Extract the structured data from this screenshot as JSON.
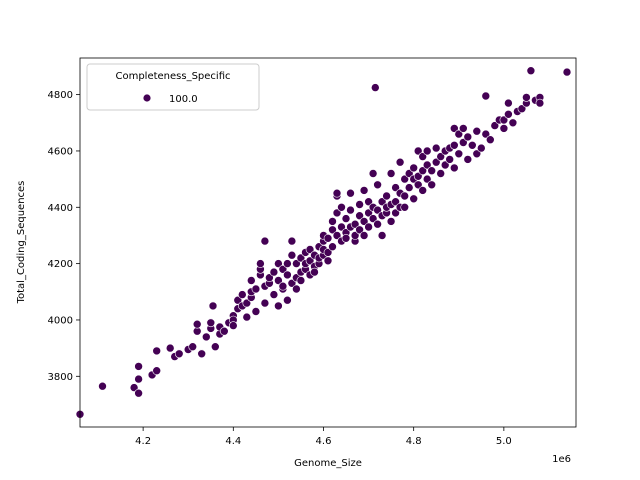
{
  "chart_data": {
    "type": "scatter",
    "title": "",
    "xlabel": "Genome_Size",
    "ylabel": "Total_Coding_Sequences",
    "x_offset_label": "1e6",
    "xlim": [
      4.06,
      5.16
    ],
    "ylim": [
      3620,
      4930
    ],
    "x_ticks": [
      4.2,
      4.4,
      4.6,
      4.8,
      5.0
    ],
    "x_tick_labels": [
      "4.2",
      "4.4",
      "4.6",
      "4.8",
      "5.0"
    ],
    "y_ticks": [
      3800,
      4000,
      4200,
      4400,
      4600,
      4800
    ],
    "y_tick_labels": [
      "3800",
      "4000",
      "4200",
      "4400",
      "4600",
      "4800"
    ],
    "grid": false,
    "legend": {
      "title": "Completeness_Specific",
      "placement": "top-left",
      "entries": [
        {
          "label": "100.0",
          "color": "#440154"
        }
      ]
    },
    "marker_color": "#440154",
    "marker_edge": "#ffffff",
    "series": [
      {
        "name": "100.0",
        "points": [
          [
            4.06,
            3665
          ],
          [
            4.11,
            3765
          ],
          [
            4.18,
            3760
          ],
          [
            4.19,
            3740
          ],
          [
            4.19,
            3790
          ],
          [
            4.19,
            3835
          ],
          [
            4.22,
            3805
          ],
          [
            4.23,
            3820
          ],
          [
            4.23,
            3890
          ],
          [
            4.26,
            3900
          ],
          [
            4.27,
            3870
          ],
          [
            4.28,
            3880
          ],
          [
            4.3,
            3895
          ],
          [
            4.31,
            3905
          ],
          [
            4.32,
            3960
          ],
          [
            4.32,
            3985
          ],
          [
            4.33,
            3880
          ],
          [
            4.34,
            3940
          ],
          [
            4.35,
            3970
          ],
          [
            4.35,
            3990
          ],
          [
            4.355,
            4050
          ],
          [
            4.36,
            3905
          ],
          [
            4.37,
            3950
          ],
          [
            4.37,
            3975
          ],
          [
            4.38,
            3960
          ],
          [
            4.39,
            3990
          ],
          [
            4.4,
            4015
          ],
          [
            4.4,
            4000
          ],
          [
            4.4,
            3980
          ],
          [
            4.41,
            4040
          ],
          [
            4.41,
            4070
          ],
          [
            4.42,
            4050
          ],
          [
            4.42,
            4090
          ],
          [
            4.43,
            4010
          ],
          [
            4.43,
            4060
          ],
          [
            4.44,
            4080
          ],
          [
            4.44,
            4100
          ],
          [
            4.44,
            4140
          ],
          [
            4.45,
            4030
          ],
          [
            4.45,
            4110
          ],
          [
            4.46,
            4160
          ],
          [
            4.46,
            4180
          ],
          [
            4.46,
            4200
          ],
          [
            4.47,
            4060
          ],
          [
            4.47,
            4120
          ],
          [
            4.47,
            4280
          ],
          [
            4.48,
            4130
          ],
          [
            4.48,
            4150
          ],
          [
            4.49,
            4090
          ],
          [
            4.49,
            4170
          ],
          [
            4.5,
            4050
          ],
          [
            4.5,
            4140
          ],
          [
            4.5,
            4200
          ],
          [
            4.51,
            4110
          ],
          [
            4.51,
            4180
          ],
          [
            4.51,
            4120
          ],
          [
            4.52,
            4070
          ],
          [
            4.52,
            4160
          ],
          [
            4.52,
            4200
          ],
          [
            4.53,
            4130
          ],
          [
            4.53,
            4230
          ],
          [
            4.53,
            4280
          ],
          [
            4.54,
            4110
          ],
          [
            4.54,
            4150
          ],
          [
            4.54,
            4200
          ],
          [
            4.55,
            4170
          ],
          [
            4.55,
            4140
          ],
          [
            4.55,
            4220
          ],
          [
            4.56,
            4180
          ],
          [
            4.56,
            4200
          ],
          [
            4.56,
            4240
          ],
          [
            4.57,
            4160
          ],
          [
            4.57,
            4210
          ],
          [
            4.57,
            4250
          ],
          [
            4.58,
            4190
          ],
          [
            4.58,
            4230
          ],
          [
            4.58,
            4170
          ],
          [
            4.59,
            4200
          ],
          [
            4.59,
            4260
          ],
          [
            4.59,
            4220
          ],
          [
            4.6,
            4230
          ],
          [
            4.6,
            4280
          ],
          [
            4.6,
            4300
          ],
          [
            4.6,
            4250
          ],
          [
            4.61,
            4240
          ],
          [
            4.61,
            4290
          ],
          [
            4.61,
            4210
          ],
          [
            4.62,
            4320
          ],
          [
            4.62,
            4350
          ],
          [
            4.62,
            4260
          ],
          [
            4.63,
            4300
          ],
          [
            4.63,
            4380
          ],
          [
            4.63,
            4440
          ],
          [
            4.63,
            4450
          ],
          [
            4.64,
            4280
          ],
          [
            4.64,
            4330
          ],
          [
            4.64,
            4400
          ],
          [
            4.65,
            4310
          ],
          [
            4.65,
            4360
          ],
          [
            4.65,
            4290
          ],
          [
            4.66,
            4330
          ],
          [
            4.66,
            4390
          ],
          [
            4.66,
            4450
          ],
          [
            4.67,
            4340
          ],
          [
            4.67,
            4280
          ],
          [
            4.67,
            4300
          ],
          [
            4.68,
            4320
          ],
          [
            4.68,
            4370
          ],
          [
            4.68,
            4410
          ],
          [
            4.69,
            4350
          ],
          [
            4.69,
            4300
          ],
          [
            4.69,
            4460
          ],
          [
            4.7,
            4380
          ],
          [
            4.7,
            4420
          ],
          [
            4.7,
            4330
          ],
          [
            4.71,
            4360
          ],
          [
            4.71,
            4400
          ],
          [
            4.71,
            4520
          ],
          [
            4.715,
            4825
          ],
          [
            4.72,
            4340
          ],
          [
            4.72,
            4390
          ],
          [
            4.72,
            4480
          ],
          [
            4.73,
            4370
          ],
          [
            4.73,
            4420
          ],
          [
            4.73,
            4300
          ],
          [
            4.74,
            4380
          ],
          [
            4.74,
            4440
          ],
          [
            4.74,
            4400
          ],
          [
            4.75,
            4350
          ],
          [
            4.75,
            4410
          ],
          [
            4.75,
            4520
          ],
          [
            4.76,
            4420
          ],
          [
            4.76,
            4380
          ],
          [
            4.76,
            4470
          ],
          [
            4.77,
            4450
          ],
          [
            4.77,
            4400
          ],
          [
            4.77,
            4560
          ],
          [
            4.78,
            4440
          ],
          [
            4.78,
            4500
          ],
          [
            4.78,
            4400
          ],
          [
            4.79,
            4470
          ],
          [
            4.79,
            4520
          ],
          [
            4.8,
            4430
          ],
          [
            4.8,
            4500
          ],
          [
            4.8,
            4540
          ],
          [
            4.81,
            4480
          ],
          [
            4.81,
            4510
          ],
          [
            4.81,
            4600
          ],
          [
            4.82,
            4460
          ],
          [
            4.82,
            4530
          ],
          [
            4.82,
            4580
          ],
          [
            4.83,
            4500
          ],
          [
            4.83,
            4550
          ],
          [
            4.83,
            4600
          ],
          [
            4.84,
            4480
          ],
          [
            4.84,
            4530
          ],
          [
            4.85,
            4560
          ],
          [
            4.85,
            4610
          ],
          [
            4.86,
            4520
          ],
          [
            4.86,
            4580
          ],
          [
            4.87,
            4550
          ],
          [
            4.87,
            4600
          ],
          [
            4.88,
            4570
          ],
          [
            4.88,
            4610
          ],
          [
            4.89,
            4540
          ],
          [
            4.89,
            4620
          ],
          [
            4.89,
            4680
          ],
          [
            4.9,
            4590
          ],
          [
            4.9,
            4660
          ],
          [
            4.91,
            4630
          ],
          [
            4.91,
            4680
          ],
          [
            4.92,
            4570
          ],
          [
            4.92,
            4650
          ],
          [
            4.93,
            4620
          ],
          [
            4.94,
            4590
          ],
          [
            4.94,
            4670
          ],
          [
            4.95,
            4610
          ],
          [
            4.96,
            4660
          ],
          [
            4.96,
            4795
          ],
          [
            4.97,
            4640
          ],
          [
            4.98,
            4690
          ],
          [
            4.99,
            4710
          ],
          [
            5.0,
            4680
          ],
          [
            5.0,
            4710
          ],
          [
            5.01,
            4730
          ],
          [
            5.01,
            4770
          ],
          [
            5.02,
            4700
          ],
          [
            5.03,
            4740
          ],
          [
            5.04,
            4750
          ],
          [
            5.05,
            4770
          ],
          [
            5.05,
            4790
          ],
          [
            5.06,
            4885
          ],
          [
            5.07,
            4780
          ],
          [
            5.08,
            4790
          ],
          [
            5.08,
            4770
          ],
          [
            5.14,
            4880
          ]
        ]
      }
    ]
  }
}
